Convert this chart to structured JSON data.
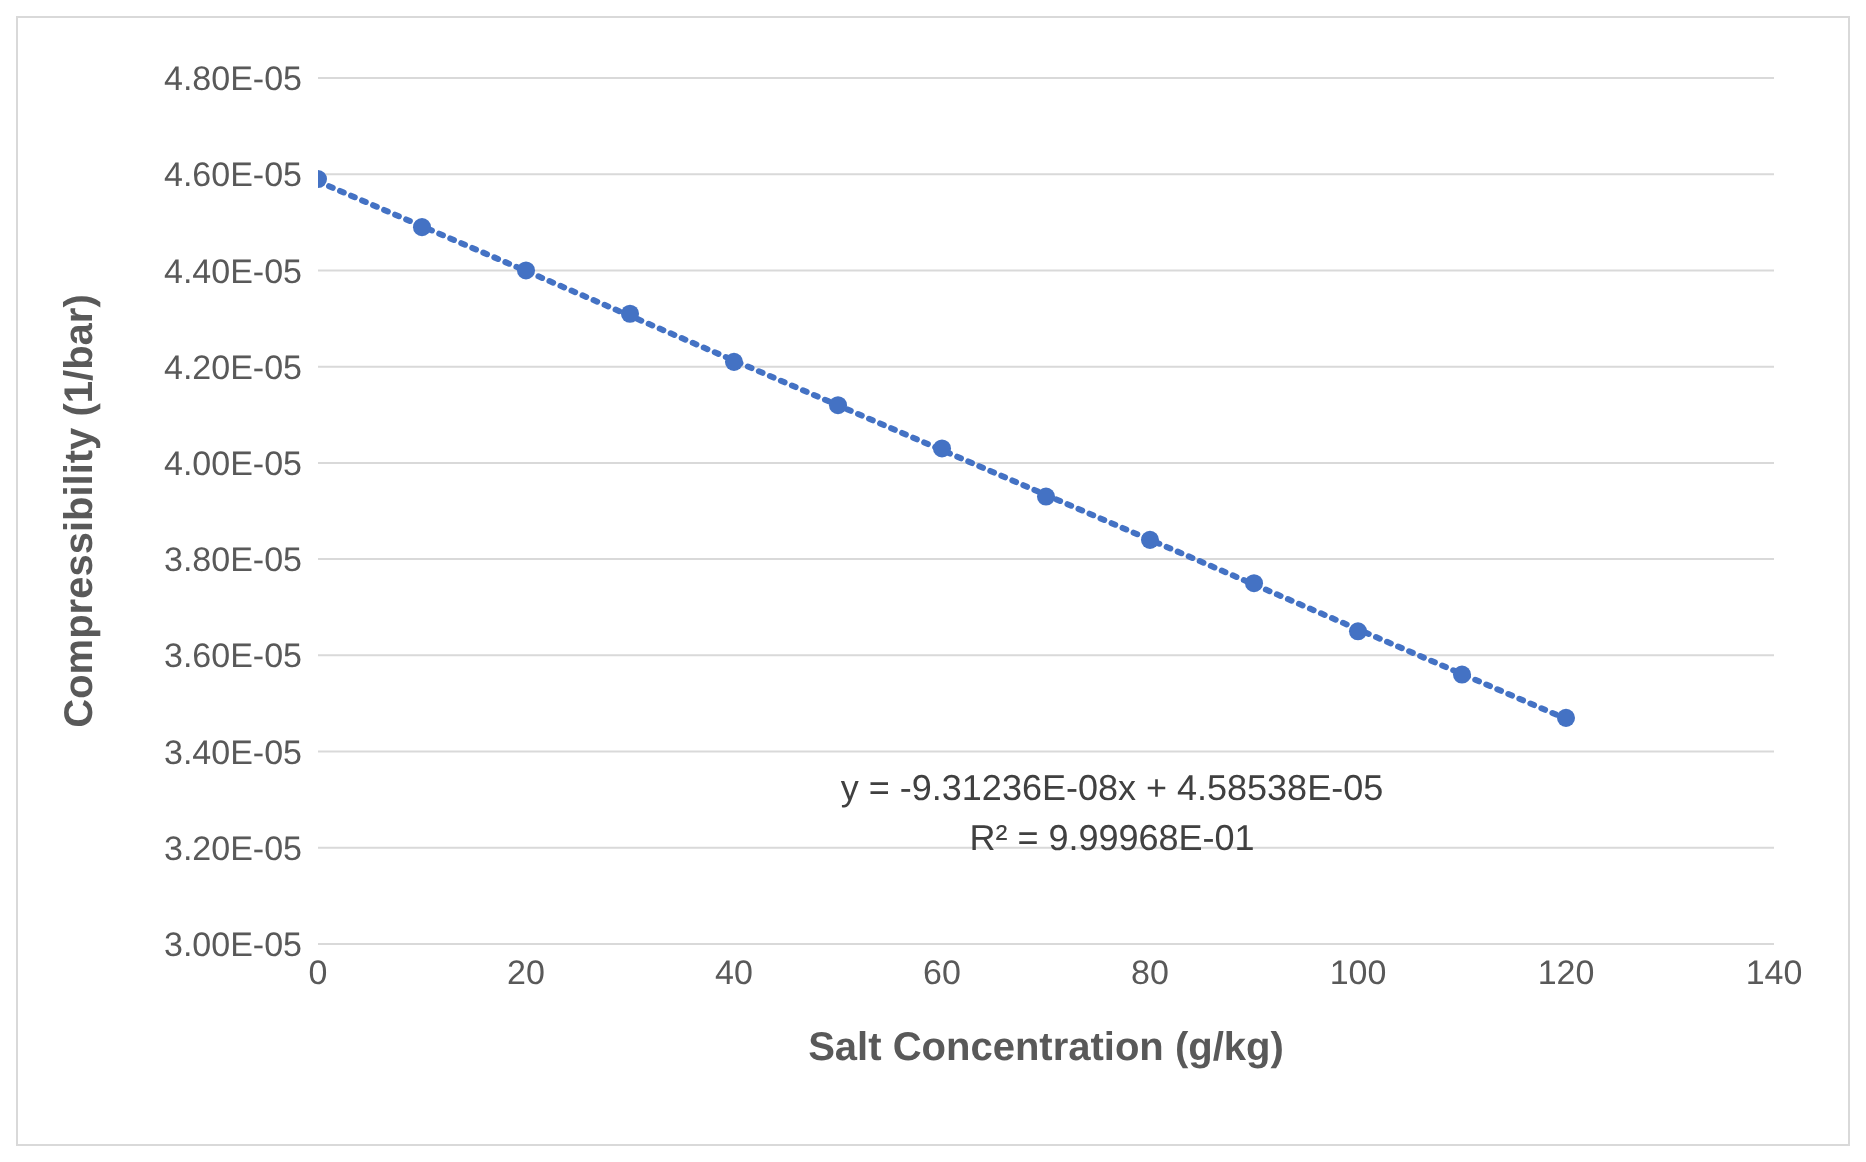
{
  "chart_data": {
    "type": "scatter",
    "xlabel": "Salt Concentration (g/kg)",
    "ylabel": "Compressibility (1/bar)",
    "xlim": [
      0,
      140
    ],
    "xticks": [
      0,
      20,
      40,
      60,
      80,
      100,
      120,
      140
    ],
    "ylim": [
      3e-05,
      4.8e-05
    ],
    "yticks": [
      {
        "value": 3e-05,
        "label": "3.00E-05"
      },
      {
        "value": 3.2e-05,
        "label": "3.20E-05"
      },
      {
        "value": 3.4e-05,
        "label": "3.40E-05"
      },
      {
        "value": 3.6e-05,
        "label": "3.60E-05"
      },
      {
        "value": 3.8e-05,
        "label": "3.80E-05"
      },
      {
        "value": 4e-05,
        "label": "4.00E-05"
      },
      {
        "value": 4.2e-05,
        "label": "4.20E-05"
      },
      {
        "value": 4.4e-05,
        "label": "4.40E-05"
      },
      {
        "value": 4.6e-05,
        "label": "4.60E-05"
      },
      {
        "value": 4.8e-05,
        "label": "4.80E-05"
      }
    ],
    "grid": "y",
    "legend": false,
    "marker": "circle",
    "series": [
      {
        "color": "#4472c4",
        "x": [
          0,
          10,
          20,
          30,
          40,
          50,
          60,
          70,
          80,
          90,
          100,
          110,
          120
        ],
        "values": [
          4.59e-05,
          4.49e-05,
          4.4e-05,
          4.31e-05,
          4.21e-05,
          4.12e-05,
          4.03e-05,
          3.93e-05,
          3.84e-05,
          3.75e-05,
          3.65e-05,
          3.56e-05,
          3.47e-05
        ]
      },
      {
        "type": "line",
        "color": "#4472c4",
        "line_style": "dotted",
        "marker": "none",
        "x": [
          0,
          120
        ],
        "values": [
          4.585e-05,
          3.468e-05
        ]
      }
    ],
    "annotations": [
      "y = -9.31236E-08x + 4.58538E-05",
      "R² = 9.99968E-01"
    ]
  }
}
